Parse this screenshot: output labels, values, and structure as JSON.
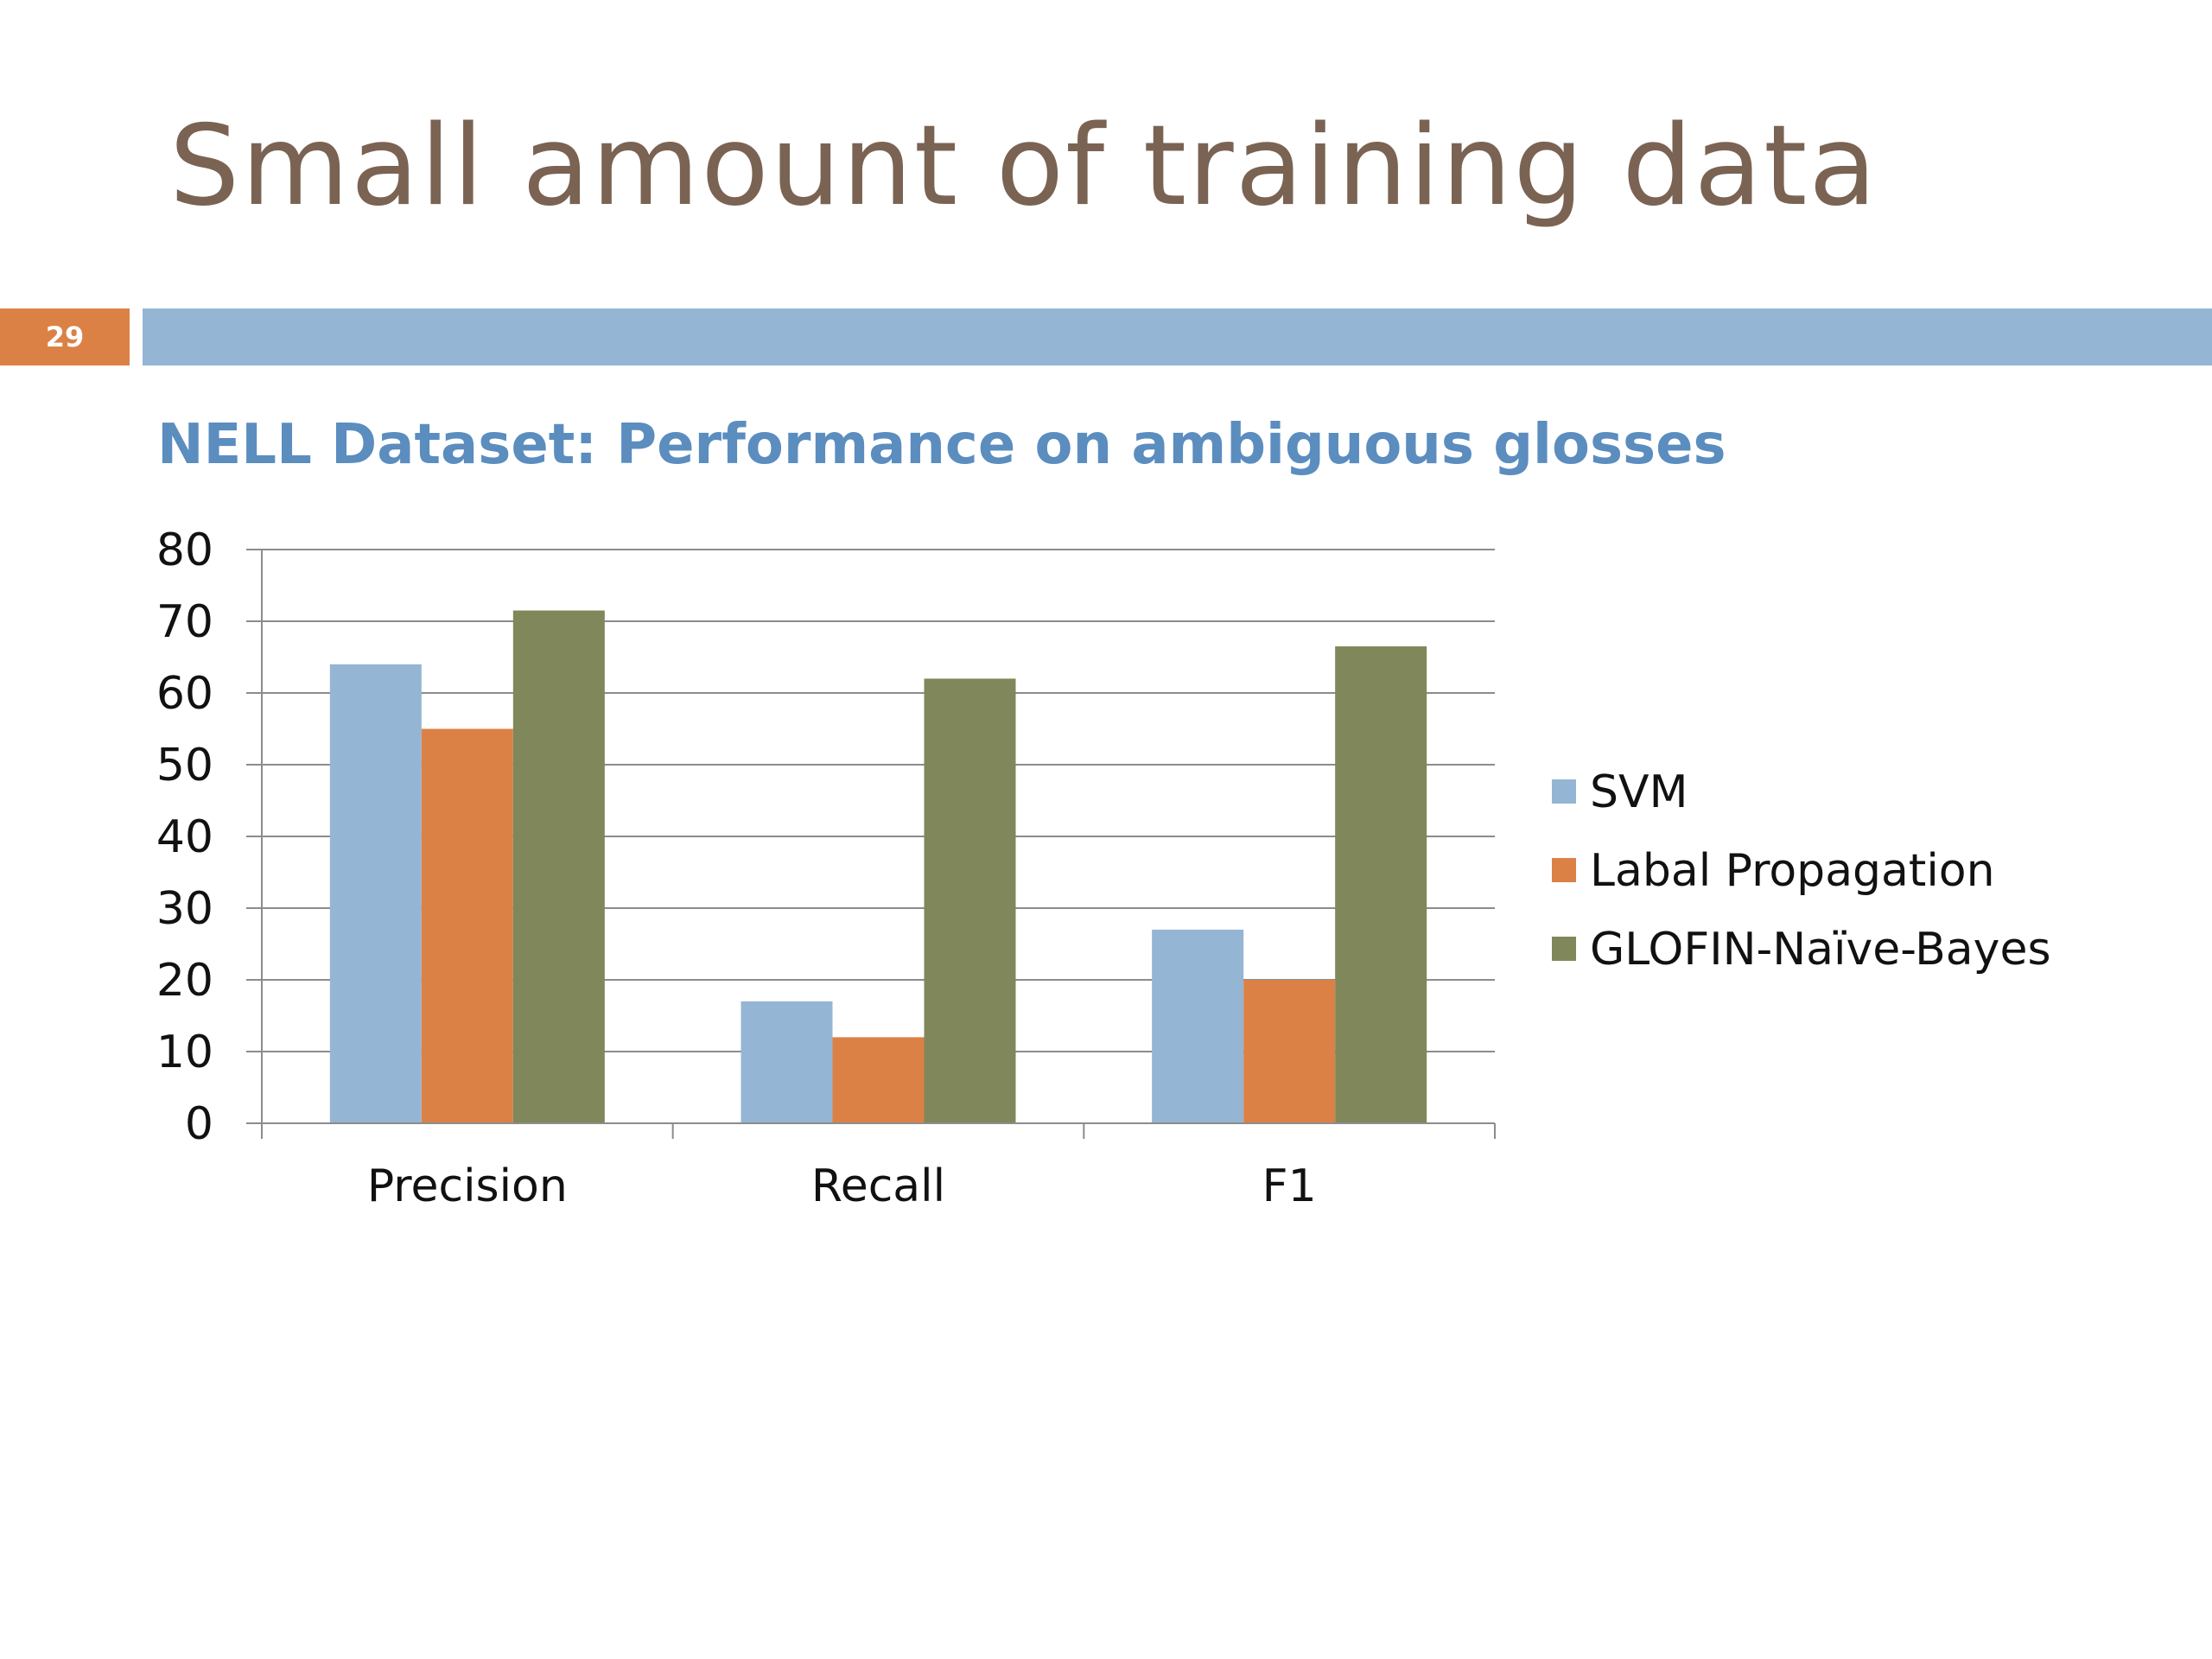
{
  "slide": {
    "title": "Small amount of training data",
    "number": "29",
    "subtitle": "NELL Dataset: Performance on ambiguous glosses"
  },
  "colors": {
    "title": "#7a6353",
    "accent_orange": "#dc8146",
    "rule_blue": "#95b5d4",
    "subtitle_blue": "#5b8dbf"
  },
  "chart_data": {
    "type": "bar",
    "categories": [
      "Precision",
      "Recall",
      "F1"
    ],
    "series": [
      {
        "name": "SVM",
        "values": [
          64,
          17,
          27
        ],
        "color": "#95b5d4"
      },
      {
        "name": "Labal Propagation",
        "values": [
          55,
          12,
          20
        ],
        "color": "#dc8146"
      },
      {
        "name": "GLOFIN-Naïve-Bayes",
        "values": [
          71.5,
          62,
          66.5
        ],
        "color": "#80875a"
      }
    ],
    "yticks": [
      "0",
      "10",
      "20",
      "30",
      "40",
      "50",
      "60",
      "70",
      "80"
    ],
    "ylim": [
      0,
      80
    ],
    "grid": true,
    "legend_position": "right"
  }
}
